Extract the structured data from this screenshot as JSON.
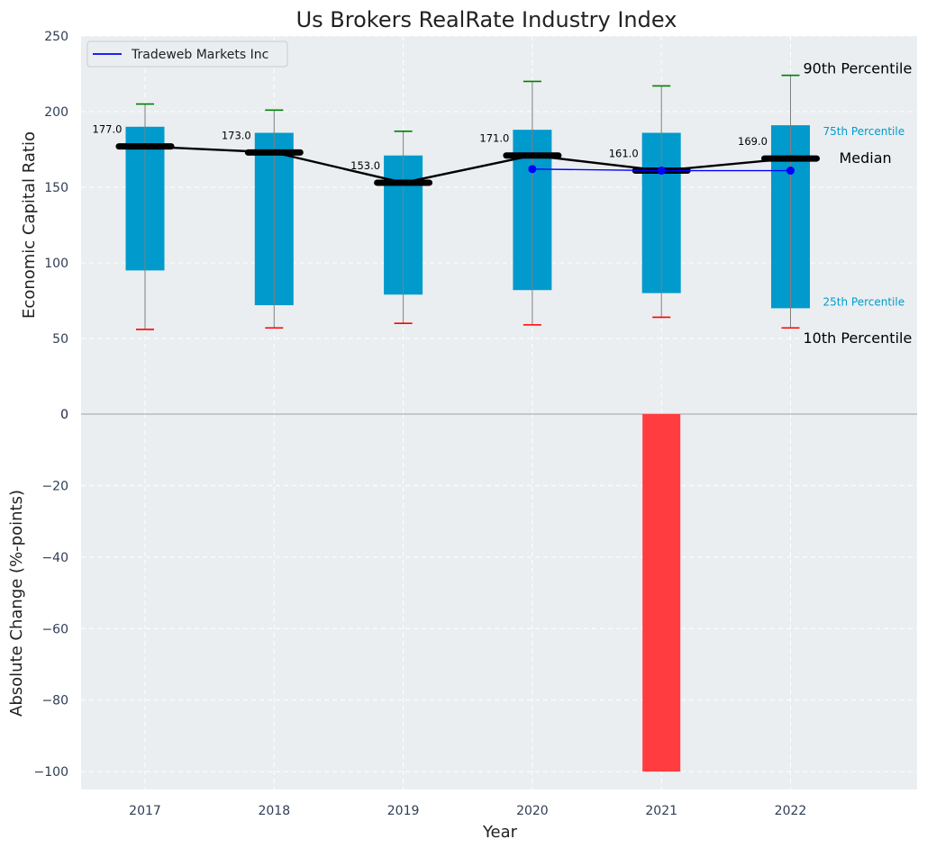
{
  "chart_data": [
    {
      "type": "box",
      "title": "Us Brokers RealRate Industry Index",
      "ylabel": "Economic Capital Ratio",
      "ylim": [
        0,
        250
      ],
      "yticks": [
        "0",
        "50",
        "100",
        "150",
        "200",
        "250"
      ],
      "categories": [
        "2017",
        "2018",
        "2019",
        "2020",
        "2021",
        "2022"
      ],
      "p10": [
        56,
        57,
        60,
        59,
        64,
        57
      ],
      "p25": [
        95,
        72,
        79,
        82,
        80,
        70
      ],
      "median": [
        177.0,
        173.0,
        153.0,
        171.0,
        161.0,
        169.0
      ],
      "p75": [
        190,
        186,
        171,
        188,
        186,
        191
      ],
      "p90": [
        205,
        201,
        187,
        220,
        217,
        224
      ],
      "median_labels": [
        "177.0",
        "173.0",
        "153.0",
        "171.0",
        "161.0",
        "169.0"
      ],
      "series": [
        {
          "name": "Tradeweb Markets Inc",
          "x": [
            "2020",
            "2021",
            "2022"
          ],
          "values": [
            162,
            161,
            161
          ]
        }
      ],
      "annotations": {
        "p90": "90th Percentile",
        "p75": "75th Percentile",
        "median": "Median",
        "p25": "25th Percentile",
        "p10": "10th Percentile"
      },
      "legend": "top-left",
      "grid": true
    },
    {
      "type": "bar",
      "ylabel": "Absolute Change (%-points)",
      "xlabel": "Year",
      "ylim": [
        -105,
        0
      ],
      "yticks": [
        "−100",
        "−80",
        "−60",
        "−40",
        "−20",
        "0"
      ],
      "categories": [
        "2017",
        "2018",
        "2019",
        "2020",
        "2021",
        "2022"
      ],
      "values": [
        0,
        0,
        0,
        0,
        -100,
        0
      ],
      "grid": true
    }
  ],
  "colors": {
    "box": "#009acd",
    "median_line": "#000000",
    "company_line": "#0000ff",
    "p90_cap": "#008000",
    "p10_cap": "#ff0000",
    "negative_bar": "#ff3c40",
    "plot_bg": "#eaeef0",
    "grid": "#ffffff",
    "p_small_text": "#009acd"
  }
}
